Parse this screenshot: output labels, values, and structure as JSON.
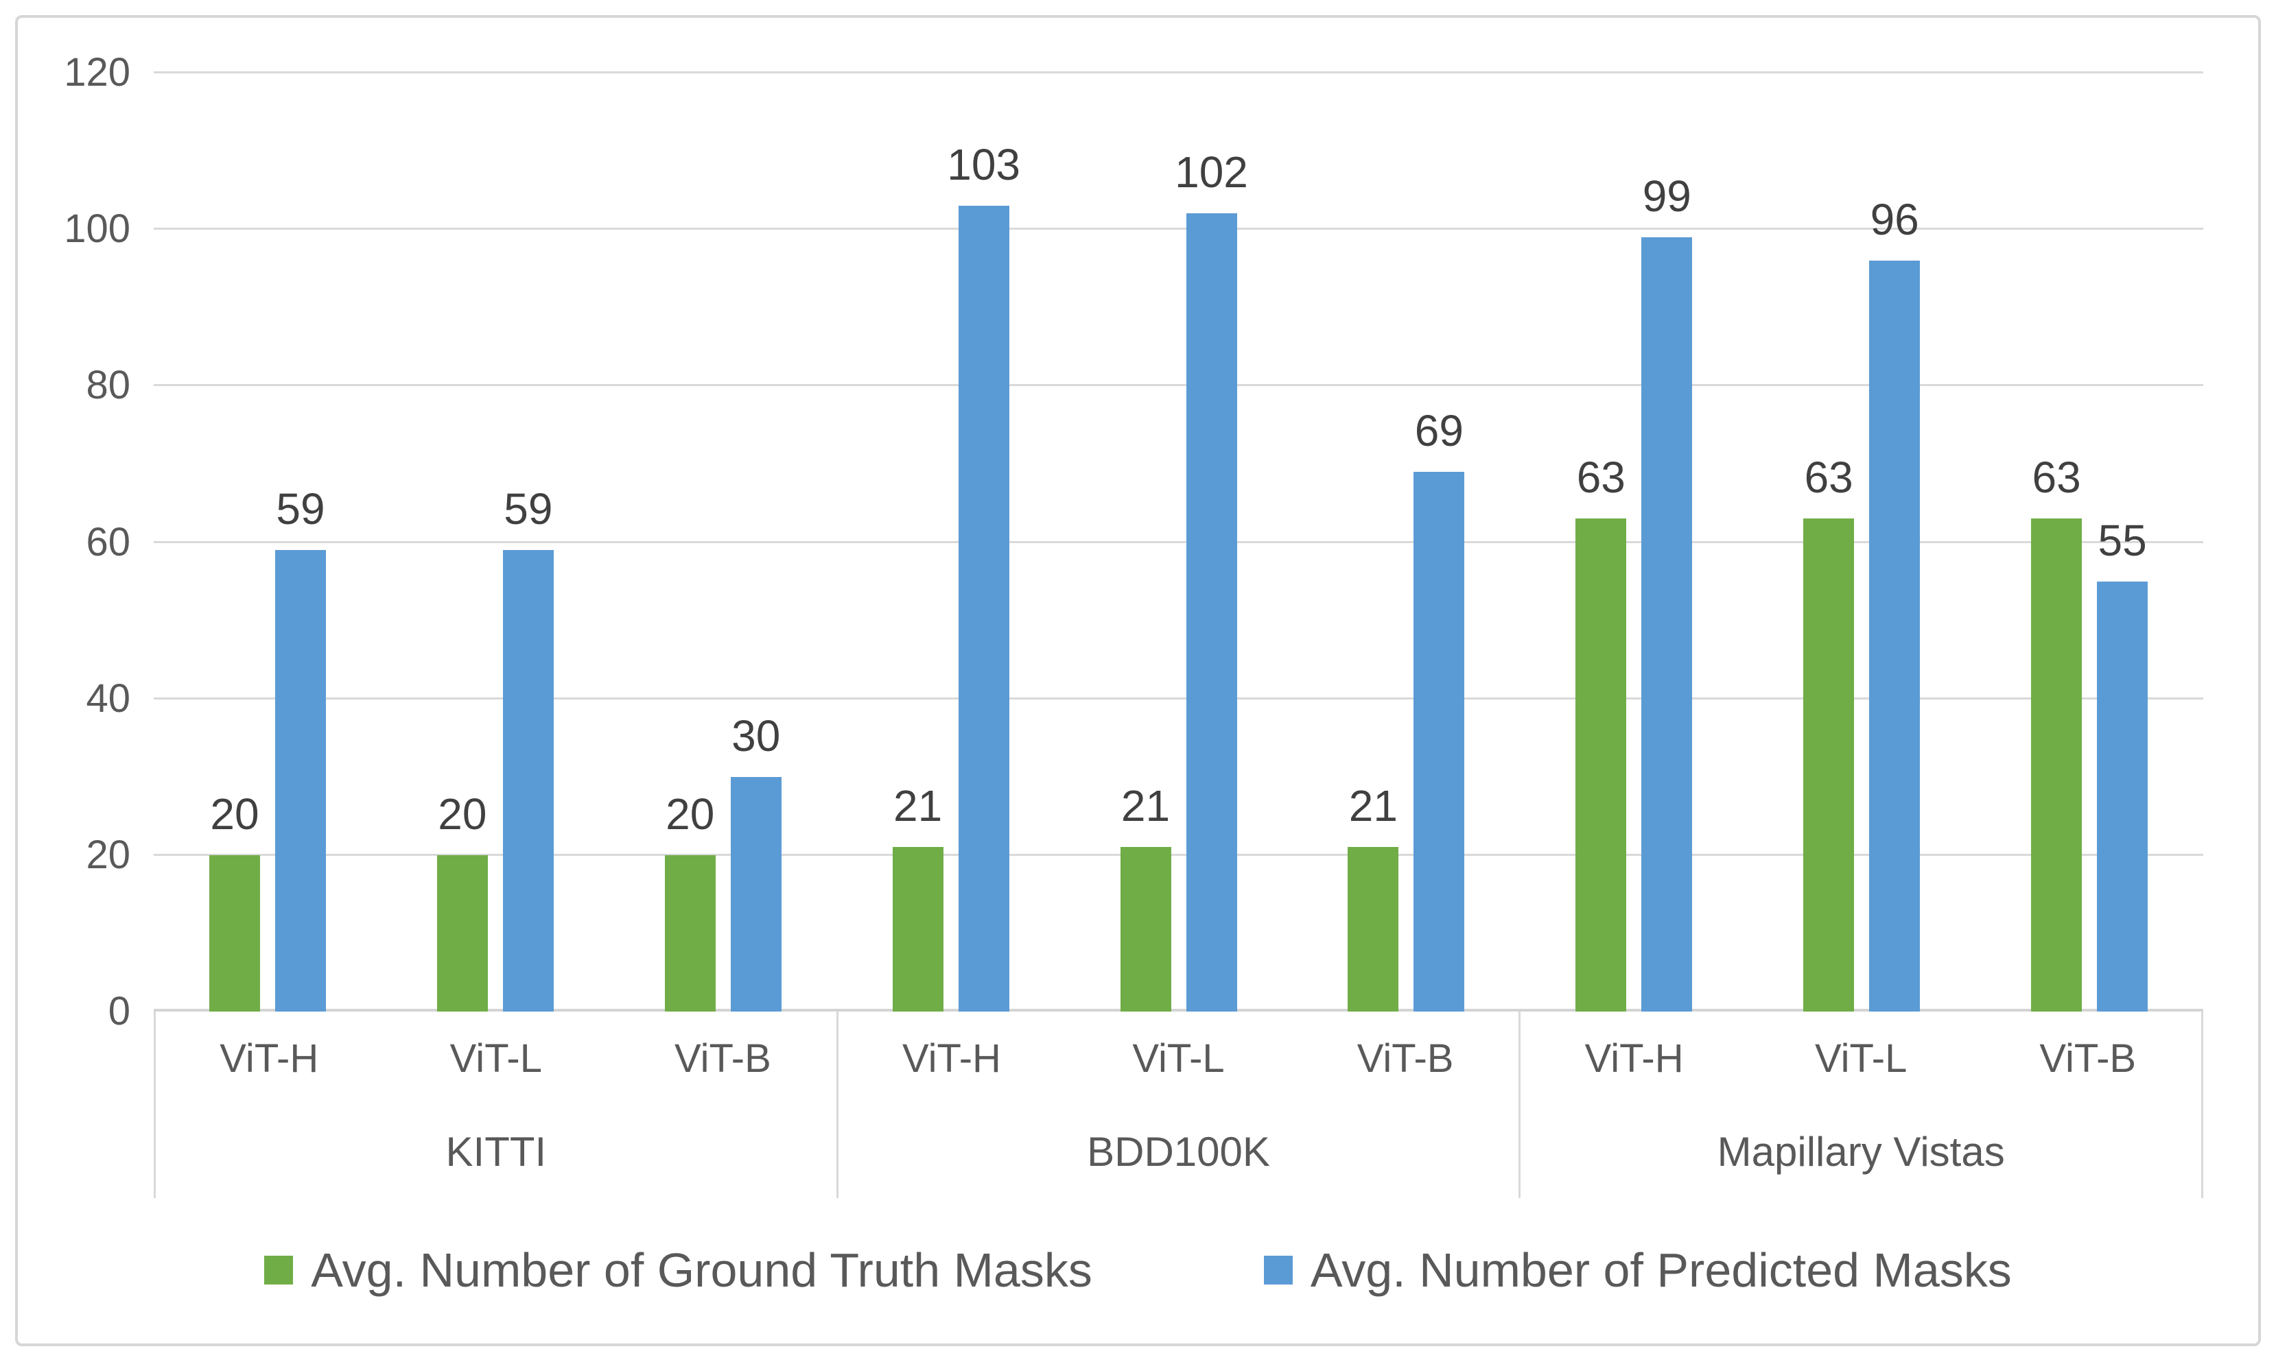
{
  "chart_data": {
    "type": "bar",
    "title": "",
    "ylim": [
      0,
      120
    ],
    "yticks": [
      0,
      20,
      40,
      60,
      80,
      100,
      120
    ],
    "grid": true,
    "legend_position": "bottom",
    "group_labels": [
      "KITTI",
      "BDD100K",
      "Mapillary Vistas"
    ],
    "categories": [
      "ViT-H",
      "ViT-L",
      "ViT-B",
      "ViT-H",
      "ViT-L",
      "ViT-B",
      "ViT-H",
      "ViT-L",
      "ViT-B"
    ],
    "series": [
      {
        "name": "Avg. Number of Ground Truth Masks",
        "color": "#70AD47",
        "values": [
          20,
          20,
          20,
          21,
          21,
          21,
          63,
          63,
          63
        ]
      },
      {
        "name": "Avg. Number of Predicted Masks",
        "color": "#5B9BD5",
        "values": [
          59,
          59,
          30,
          103,
          102,
          69,
          99,
          96,
          55
        ]
      }
    ]
  },
  "colors": {
    "gridline": "#D9D9D9",
    "axis_text": "#595959",
    "value_label_text": "#404040",
    "figure_border": "#D6D6D6"
  }
}
